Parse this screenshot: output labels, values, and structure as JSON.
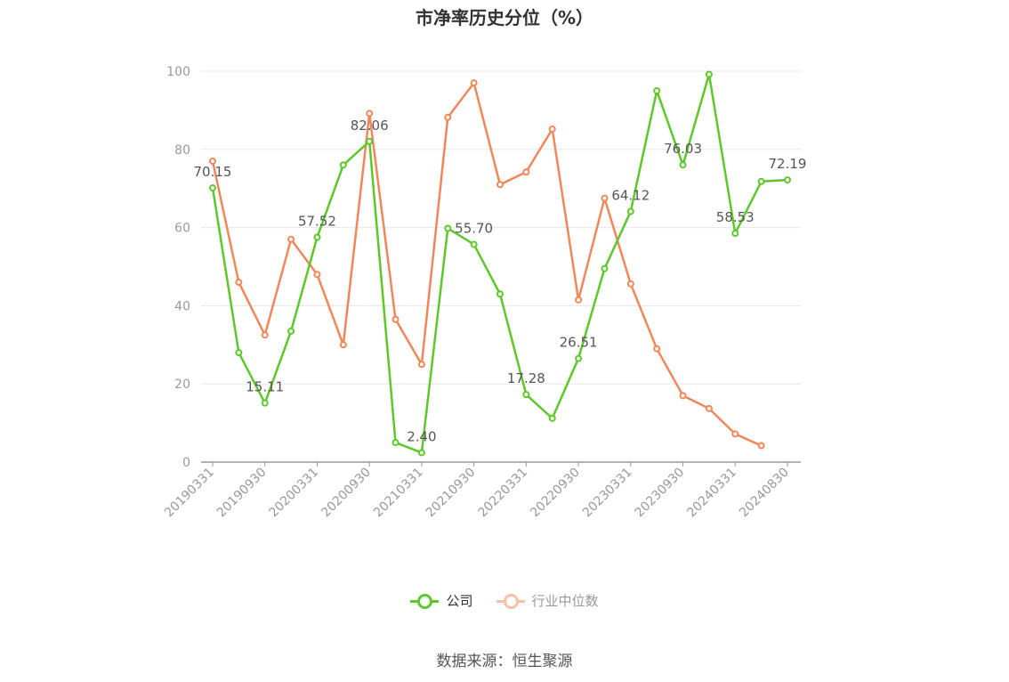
{
  "title": "市净率历史分位（%）",
  "source": "数据来源：恒生聚源",
  "colors": {
    "company": "#5dc829",
    "industry": "#f0875a",
    "industry_legend": "#f8c0a6",
    "grid": "#e6e6ee",
    "axis": "#999999"
  },
  "legend": [
    {
      "label": "公司",
      "series": "company"
    },
    {
      "label": "行业中位数",
      "series": "industry"
    }
  ],
  "chart_data": {
    "type": "line",
    "title": "市净率历史分位（%）",
    "x": [
      "20190331",
      "20190630",
      "20190930",
      "20191231",
      "20200331",
      "20200630",
      "20200930",
      "20201231",
      "20210331",
      "20210630",
      "20210930",
      "20211231",
      "20220331",
      "20220630",
      "20220930",
      "20221231",
      "20230331",
      "20230630",
      "20230930",
      "20231231",
      "20240331",
      "20240630",
      "20240830"
    ],
    "x_tick_labels": [
      "20190331",
      "20190930",
      "20200331",
      "20200930",
      "20210331",
      "20210930",
      "20220331",
      "20220930",
      "20230331",
      "20230930",
      "20240331",
      "20240830"
    ],
    "ylim": [
      0,
      100
    ],
    "y_ticks": [
      0,
      20,
      40,
      60,
      80,
      100
    ],
    "grid": true,
    "legend_position": "bottom",
    "series": [
      {
        "name": "公司",
        "key": "company",
        "values": [
          70.15,
          28.0,
          15.11,
          33.5,
          57.52,
          76.0,
          82.06,
          5.0,
          2.4,
          59.8,
          55.7,
          43.0,
          17.28,
          11.2,
          26.51,
          49.5,
          64.12,
          95.0,
          76.03,
          99.2,
          58.53,
          71.8,
          72.19
        ],
        "labels": {
          "0": "70.15",
          "2": "15.11",
          "4": "57.52",
          "6": "82.06",
          "8": "2.40",
          "10": "55.70",
          "12": "17.28",
          "14": "26.51",
          "16": "64.12",
          "18": "76.03",
          "20": "58.53",
          "22": "72.19"
        }
      },
      {
        "name": "行业中位数",
        "key": "industry",
        "values": [
          77.0,
          46.0,
          32.5,
          57.0,
          48.0,
          30.0,
          89.2,
          36.5,
          25.0,
          88.2,
          97.0,
          71.0,
          74.2,
          85.2,
          41.5,
          67.5,
          45.6,
          29.0,
          17.0,
          13.7,
          7.2,
          4.2,
          null
        ]
      }
    ]
  }
}
